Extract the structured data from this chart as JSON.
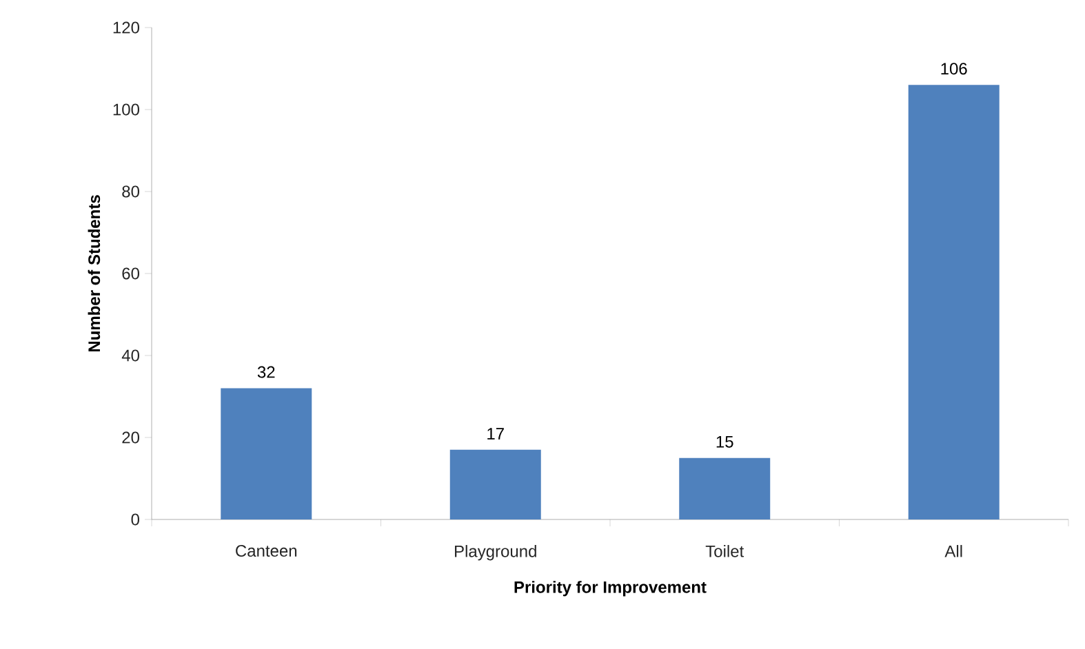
{
  "chart_data": {
    "type": "bar",
    "xlabel": "Priority for Improvement",
    "ylabel": "Number of Students",
    "categories": [
      "Canteen",
      "Playground",
      "Toilet",
      "All"
    ],
    "values": [
      32,
      17,
      15,
      106
    ],
    "color": "#4f81bd",
    "data_labels": true,
    "ylim": [
      0,
      120
    ],
    "yticks": [
      0,
      20,
      40,
      60,
      80,
      100,
      120
    ],
    "grid": false
  }
}
